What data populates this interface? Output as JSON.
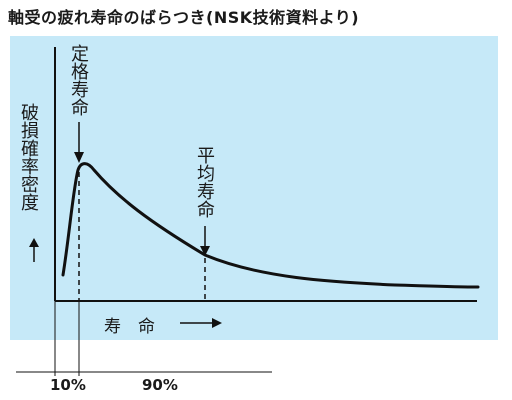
{
  "page": {
    "title": "軸受の疲れ寿命のばらつき(NSK技術資料より)"
  },
  "chart_data": {
    "type": "line",
    "title": "軸受の疲れ寿命のばらつき(NSK技術資料より)",
    "ylabel": "破損確率密度",
    "xlabel": "寿　命",
    "annotations": {
      "rated_life": "定格寿命",
      "mean_life": "平均寿命",
      "left_span": "10%",
      "right_span": "90%"
    },
    "colors": {
      "background_panel": "#c6e9f8",
      "curve": "#111111"
    },
    "grid": false
  }
}
